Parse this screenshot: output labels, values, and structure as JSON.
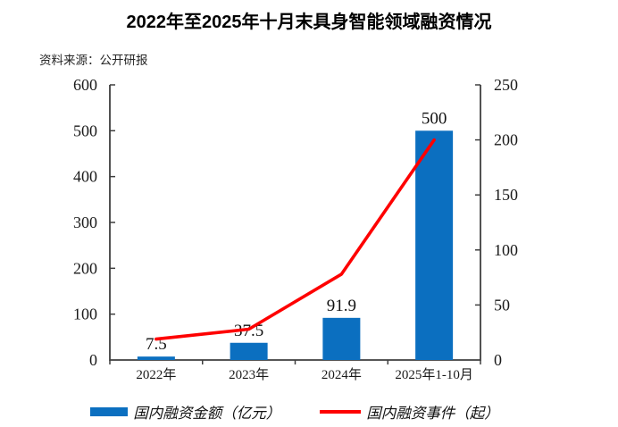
{
  "title": "2022年至2025年十月末具身智能领域融资情况",
  "source": "资料来源：公开研报",
  "colors": {
    "bar": "#0b6fc0",
    "line": "#fe0000",
    "axis": "#3f3f3f",
    "tick_text": "#1a1a1a"
  },
  "legend": {
    "items": [
      {
        "label": "国内融资金额（亿元）",
        "swatch": "bar-swatch",
        "color": "#0b6fc0"
      },
      {
        "label": "国内融资事件（起）",
        "swatch": "line-swatch",
        "color": "#fe0000"
      }
    ]
  },
  "chart_data": {
    "type": "combo",
    "categories": [
      "2022年",
      "2023年",
      "2024年",
      "2025年1-10月"
    ],
    "series": [
      {
        "name": "国内融资金额（亿元）",
        "type": "bar",
        "axis": "left",
        "color": "#0b6fc0",
        "values": [
          7.5,
          37.5,
          91.9,
          500
        ],
        "labels": [
          "7.5",
          "37.5",
          "91.9",
          "500"
        ]
      },
      {
        "name": "国内融资事件（起）",
        "type": "line",
        "axis": "right",
        "color": "#fe0000",
        "values": [
          19,
          28,
          78,
          200
        ],
        "values_estimated": true
      }
    ],
    "left_axis": {
      "min": 0,
      "max": 600,
      "step": 100,
      "tick_labels": [
        "0",
        "100",
        "200",
        "300",
        "400",
        "500",
        "600"
      ]
    },
    "right_axis": {
      "min": 0,
      "max": 250,
      "step": 50,
      "tick_labels": [
        "0",
        "50",
        "100",
        "150",
        "200",
        "250"
      ]
    },
    "grid": false,
    "legend_position": "bottom"
  }
}
